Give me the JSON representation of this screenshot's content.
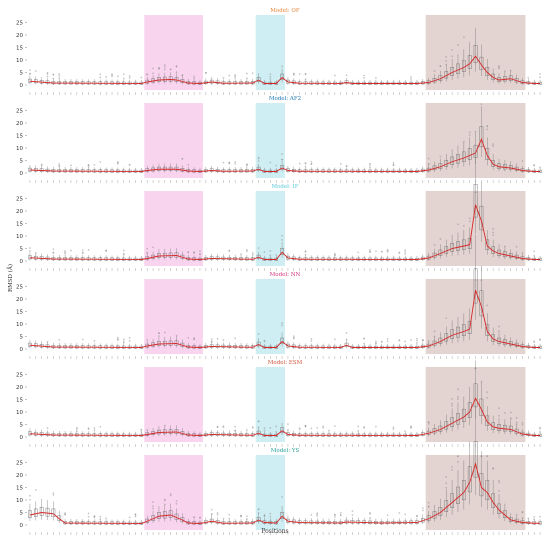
{
  "figure": {
    "ylabel": "RMSD (Å)",
    "xlabel": "Positions",
    "shaded_regions": [
      {
        "from": 19.5,
        "to": 29.5,
        "color": "#f7c6e8"
      },
      {
        "from": 38.5,
        "to": 43.5,
        "color": "#bfe8ef"
      },
      {
        "from": 67.5,
        "to": 84.5,
        "color": "#d9c4c2"
      }
    ]
  },
  "chart_data": [
    {
      "type": "box",
      "title": "Model: OF",
      "title_color": "#e8833a",
      "ylabel": "RMSD (Å)",
      "ylim": [
        -2,
        28
      ],
      "yticks": [
        0,
        5,
        10,
        15,
        20,
        25
      ],
      "x_count": 88,
      "median_line_color": "#d62728",
      "median_profile": [
        {
          "x": 0,
          "y": 1.5
        },
        {
          "x": 4,
          "y": 0.8
        },
        {
          "x": 19,
          "y": 0.6
        },
        {
          "x": 20,
          "y": 1.2
        },
        {
          "x": 22,
          "y": 2.0
        },
        {
          "x": 24,
          "y": 2.2
        },
        {
          "x": 25,
          "y": 2.0
        },
        {
          "x": 27,
          "y": 0.8
        },
        {
          "x": 29,
          "y": 0.6
        },
        {
          "x": 31,
          "y": 1.2
        },
        {
          "x": 33,
          "y": 0.7
        },
        {
          "x": 38,
          "y": 0.8
        },
        {
          "x": 39,
          "y": 2.0
        },
        {
          "x": 40,
          "y": 0.6
        },
        {
          "x": 42,
          "y": 0.6
        },
        {
          "x": 43,
          "y": 3.0
        },
        {
          "x": 44,
          "y": 1.2
        },
        {
          "x": 46,
          "y": 0.7
        },
        {
          "x": 53,
          "y": 0.6
        },
        {
          "x": 54,
          "y": 1.0
        },
        {
          "x": 55,
          "y": 0.6
        },
        {
          "x": 66,
          "y": 0.6
        },
        {
          "x": 68,
          "y": 1.0
        },
        {
          "x": 70,
          "y": 2.5
        },
        {
          "x": 72,
          "y": 5.0
        },
        {
          "x": 74,
          "y": 7.0
        },
        {
          "x": 75,
          "y": 8.5
        },
        {
          "x": 76,
          "y": 11.5
        },
        {
          "x": 77,
          "y": 8.0
        },
        {
          "x": 78,
          "y": 5.0
        },
        {
          "x": 79,
          "y": 3.0
        },
        {
          "x": 80,
          "y": 2.0
        },
        {
          "x": 82,
          "y": 2.5
        },
        {
          "x": 84,
          "y": 1.0
        },
        {
          "x": 86,
          "y": 0.6
        },
        {
          "x": 87,
          "y": 0.6
        }
      ]
    },
    {
      "type": "box",
      "title": "Model: AF2",
      "title_color": "#1f77b4",
      "ylabel": "RMSD (Å)",
      "ylim": [
        -2,
        28
      ],
      "yticks": [
        0,
        5,
        10,
        15,
        20,
        25
      ],
      "x_count": 88,
      "median_line_color": "#d62728",
      "median_profile": [
        {
          "x": 0,
          "y": 1.2
        },
        {
          "x": 4,
          "y": 0.8
        },
        {
          "x": 19,
          "y": 0.6
        },
        {
          "x": 20,
          "y": 1.0
        },
        {
          "x": 22,
          "y": 1.5
        },
        {
          "x": 25,
          "y": 1.5
        },
        {
          "x": 27,
          "y": 0.8
        },
        {
          "x": 29,
          "y": 0.6
        },
        {
          "x": 31,
          "y": 1.0
        },
        {
          "x": 33,
          "y": 0.7
        },
        {
          "x": 38,
          "y": 0.8
        },
        {
          "x": 39,
          "y": 1.5
        },
        {
          "x": 40,
          "y": 0.6
        },
        {
          "x": 42,
          "y": 0.6
        },
        {
          "x": 43,
          "y": 2.0
        },
        {
          "x": 44,
          "y": 1.0
        },
        {
          "x": 46,
          "y": 0.7
        },
        {
          "x": 66,
          "y": 0.6
        },
        {
          "x": 68,
          "y": 1.2
        },
        {
          "x": 70,
          "y": 2.5
        },
        {
          "x": 72,
          "y": 4.5
        },
        {
          "x": 74,
          "y": 6.0
        },
        {
          "x": 76,
          "y": 8.0
        },
        {
          "x": 77,
          "y": 13.5
        },
        {
          "x": 78,
          "y": 7.0
        },
        {
          "x": 79,
          "y": 3.5
        },
        {
          "x": 80,
          "y": 2.5
        },
        {
          "x": 82,
          "y": 2.0
        },
        {
          "x": 84,
          "y": 1.0
        },
        {
          "x": 86,
          "y": 0.6
        },
        {
          "x": 87,
          "y": 0.6
        }
      ]
    },
    {
      "type": "box",
      "title": "Model: IF",
      "title_color": "#5bc8d8",
      "ylabel": "RMSD (Å)",
      "ylim": [
        -2,
        28
      ],
      "yticks": [
        0,
        5,
        10,
        15,
        20,
        25
      ],
      "x_count": 88,
      "median_line_color": "#d62728",
      "median_profile": [
        {
          "x": 0,
          "y": 1.3
        },
        {
          "x": 4,
          "y": 0.8
        },
        {
          "x": 19,
          "y": 0.6
        },
        {
          "x": 20,
          "y": 1.0
        },
        {
          "x": 22,
          "y": 2.0
        },
        {
          "x": 25,
          "y": 2.2
        },
        {
          "x": 27,
          "y": 0.8
        },
        {
          "x": 29,
          "y": 0.6
        },
        {
          "x": 31,
          "y": 1.0
        },
        {
          "x": 38,
          "y": 0.7
        },
        {
          "x": 39,
          "y": 1.5
        },
        {
          "x": 40,
          "y": 0.6
        },
        {
          "x": 42,
          "y": 0.6
        },
        {
          "x": 43,
          "y": 3.5
        },
        {
          "x": 44,
          "y": 1.2
        },
        {
          "x": 46,
          "y": 0.7
        },
        {
          "x": 66,
          "y": 0.6
        },
        {
          "x": 68,
          "y": 1.2
        },
        {
          "x": 70,
          "y": 3.0
        },
        {
          "x": 72,
          "y": 5.0
        },
        {
          "x": 74,
          "y": 6.0
        },
        {
          "x": 75,
          "y": 6.5
        },
        {
          "x": 76,
          "y": 22.5
        },
        {
          "x": 77,
          "y": 16.0
        },
        {
          "x": 78,
          "y": 6.0
        },
        {
          "x": 79,
          "y": 4.0
        },
        {
          "x": 80,
          "y": 3.0
        },
        {
          "x": 82,
          "y": 2.0
        },
        {
          "x": 84,
          "y": 1.0
        },
        {
          "x": 86,
          "y": 0.6
        },
        {
          "x": 87,
          "y": 0.6
        }
      ]
    },
    {
      "type": "box",
      "title": "Model: NN",
      "title_color": "#d6357a",
      "ylabel": "RMSD (Å)",
      "ylim": [
        -2,
        28
      ],
      "yticks": [
        0,
        5,
        10,
        15,
        20,
        25
      ],
      "x_count": 88,
      "median_line_color": "#d62728",
      "median_profile": [
        {
          "x": 0,
          "y": 1.5
        },
        {
          "x": 4,
          "y": 0.8
        },
        {
          "x": 19,
          "y": 0.6
        },
        {
          "x": 20,
          "y": 1.2
        },
        {
          "x": 22,
          "y": 2.0
        },
        {
          "x": 25,
          "y": 2.2
        },
        {
          "x": 27,
          "y": 0.8
        },
        {
          "x": 29,
          "y": 0.6
        },
        {
          "x": 31,
          "y": 1.0
        },
        {
          "x": 38,
          "y": 0.7
        },
        {
          "x": 39,
          "y": 1.8
        },
        {
          "x": 40,
          "y": 0.6
        },
        {
          "x": 42,
          "y": 0.6
        },
        {
          "x": 43,
          "y": 3.0
        },
        {
          "x": 44,
          "y": 1.2
        },
        {
          "x": 46,
          "y": 0.7
        },
        {
          "x": 53,
          "y": 0.6
        },
        {
          "x": 54,
          "y": 1.5
        },
        {
          "x": 55,
          "y": 0.6
        },
        {
          "x": 66,
          "y": 0.6
        },
        {
          "x": 68,
          "y": 1.2
        },
        {
          "x": 70,
          "y": 3.0
        },
        {
          "x": 72,
          "y": 5.5
        },
        {
          "x": 74,
          "y": 7.0
        },
        {
          "x": 75,
          "y": 8.0
        },
        {
          "x": 76,
          "y": 23.5
        },
        {
          "x": 77,
          "y": 17.0
        },
        {
          "x": 78,
          "y": 7.0
        },
        {
          "x": 79,
          "y": 4.0
        },
        {
          "x": 80,
          "y": 3.0
        },
        {
          "x": 82,
          "y": 2.0
        },
        {
          "x": 84,
          "y": 1.0
        },
        {
          "x": 86,
          "y": 0.6
        },
        {
          "x": 87,
          "y": 0.6
        }
      ]
    },
    {
      "type": "box",
      "title": "Model: ESM",
      "title_color": "#d0533a",
      "ylabel": "RMSD (Å)",
      "ylim": [
        -2,
        28
      ],
      "yticks": [
        0,
        5,
        10,
        15,
        20,
        25
      ],
      "x_count": 88,
      "median_line_color": "#d62728",
      "median_profile": [
        {
          "x": 0,
          "y": 1.3
        },
        {
          "x": 4,
          "y": 0.8
        },
        {
          "x": 19,
          "y": 0.6
        },
        {
          "x": 20,
          "y": 1.0
        },
        {
          "x": 22,
          "y": 1.8
        },
        {
          "x": 25,
          "y": 2.0
        },
        {
          "x": 27,
          "y": 0.8
        },
        {
          "x": 29,
          "y": 0.6
        },
        {
          "x": 31,
          "y": 1.0
        },
        {
          "x": 38,
          "y": 0.7
        },
        {
          "x": 39,
          "y": 1.5
        },
        {
          "x": 40,
          "y": 0.6
        },
        {
          "x": 42,
          "y": 0.6
        },
        {
          "x": 43,
          "y": 2.5
        },
        {
          "x": 44,
          "y": 1.0
        },
        {
          "x": 46,
          "y": 0.7
        },
        {
          "x": 66,
          "y": 0.6
        },
        {
          "x": 68,
          "y": 1.5
        },
        {
          "x": 70,
          "y": 3.0
        },
        {
          "x": 72,
          "y": 5.5
        },
        {
          "x": 74,
          "y": 8.0
        },
        {
          "x": 75,
          "y": 10.0
        },
        {
          "x": 76,
          "y": 15.5
        },
        {
          "x": 77,
          "y": 11.0
        },
        {
          "x": 78,
          "y": 6.0
        },
        {
          "x": 79,
          "y": 4.0
        },
        {
          "x": 80,
          "y": 3.5
        },
        {
          "x": 82,
          "y": 3.0
        },
        {
          "x": 84,
          "y": 1.2
        },
        {
          "x": 86,
          "y": 0.6
        },
        {
          "x": 87,
          "y": 0.6
        }
      ]
    },
    {
      "type": "box",
      "title": "Model: YS",
      "title_color": "#2aa198",
      "ylabel": "RMSD (Å)",
      "ylim": [
        -2,
        28
      ],
      "yticks": [
        0,
        5,
        10,
        15,
        20,
        25
      ],
      "x_count": 88,
      "median_line_color": "#d62728",
      "median_profile": [
        {
          "x": 0,
          "y": 4.0
        },
        {
          "x": 2,
          "y": 5.0
        },
        {
          "x": 4,
          "y": 4.5
        },
        {
          "x": 5,
          "y": 2.5
        },
        {
          "x": 6,
          "y": 0.8
        },
        {
          "x": 19,
          "y": 0.6
        },
        {
          "x": 20,
          "y": 1.5
        },
        {
          "x": 22,
          "y": 3.5
        },
        {
          "x": 24,
          "y": 4.0
        },
        {
          "x": 26,
          "y": 2.0
        },
        {
          "x": 27,
          "y": 0.8
        },
        {
          "x": 29,
          "y": 0.6
        },
        {
          "x": 31,
          "y": 1.5
        },
        {
          "x": 33,
          "y": 0.7
        },
        {
          "x": 38,
          "y": 0.8
        },
        {
          "x": 39,
          "y": 2.0
        },
        {
          "x": 40,
          "y": 1.0
        },
        {
          "x": 42,
          "y": 0.8
        },
        {
          "x": 43,
          "y": 3.5
        },
        {
          "x": 44,
          "y": 1.5
        },
        {
          "x": 46,
          "y": 1.0
        },
        {
          "x": 53,
          "y": 0.8
        },
        {
          "x": 54,
          "y": 1.2
        },
        {
          "x": 60,
          "y": 0.8
        },
        {
          "x": 66,
          "y": 1.0
        },
        {
          "x": 68,
          "y": 2.5
        },
        {
          "x": 70,
          "y": 5.0
        },
        {
          "x": 72,
          "y": 9.0
        },
        {
          "x": 74,
          "y": 13.0
        },
        {
          "x": 75,
          "y": 17.0
        },
        {
          "x": 76,
          "y": 24.5
        },
        {
          "x": 77,
          "y": 15.0
        },
        {
          "x": 78,
          "y": 13.0
        },
        {
          "x": 79,
          "y": 9.0
        },
        {
          "x": 80,
          "y": 6.0
        },
        {
          "x": 82,
          "y": 2.0
        },
        {
          "x": 84,
          "y": 1.0
        },
        {
          "x": 86,
          "y": 0.7
        },
        {
          "x": 87,
          "y": 0.7
        }
      ]
    }
  ]
}
